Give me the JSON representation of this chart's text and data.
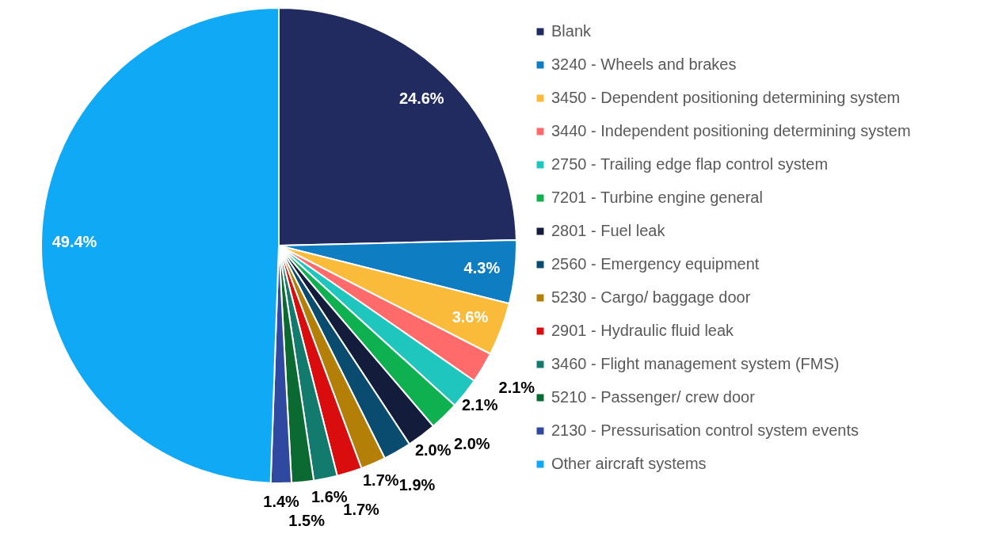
{
  "chart_data": {
    "type": "pie",
    "legend": "right",
    "categories": [
      "Blank",
      "3240 - Wheels and brakes",
      "3450 - Dependent positioning determining system",
      "3440 - Independent positioning determining system",
      "2750 - Trailing edge flap control system",
      "7201 - Turbine engine general",
      "2801 - Fuel leak",
      "2560 - Emergency equipment",
      "5230 - Cargo/ baggage door",
      "2901 - Hydraulic fluid leak",
      "3460 - Flight management system (FMS)",
      "5210 - Passenger/ crew door",
      "2130 - Pressurisation control system events",
      "Other aircraft systems"
    ],
    "values": [
      24.6,
      4.3,
      3.6,
      2.1,
      2.1,
      2.0,
      2.0,
      1.9,
      1.7,
      1.7,
      1.6,
      1.5,
      1.4,
      49.4
    ],
    "value_labels": [
      "24.6%",
      "4.3%",
      "3.6%",
      "2.1%",
      "2.1%",
      "2.0%",
      "2.0%",
      "1.9%",
      "1.7%",
      "1.7%",
      "1.6%",
      "1.5%",
      "1.4%",
      "49.4%"
    ],
    "colors": [
      "#222b5f",
      "#0f7dc2",
      "#fbbb3a",
      "#ff6b6b",
      "#1fc6bd",
      "#0fb04f",
      "#141c3c",
      "#0a4b70",
      "#b47f06",
      "#d90d0d",
      "#137a6e",
      "#0b6a31",
      "#2f48a0",
      "#10a9f5"
    ]
  }
}
